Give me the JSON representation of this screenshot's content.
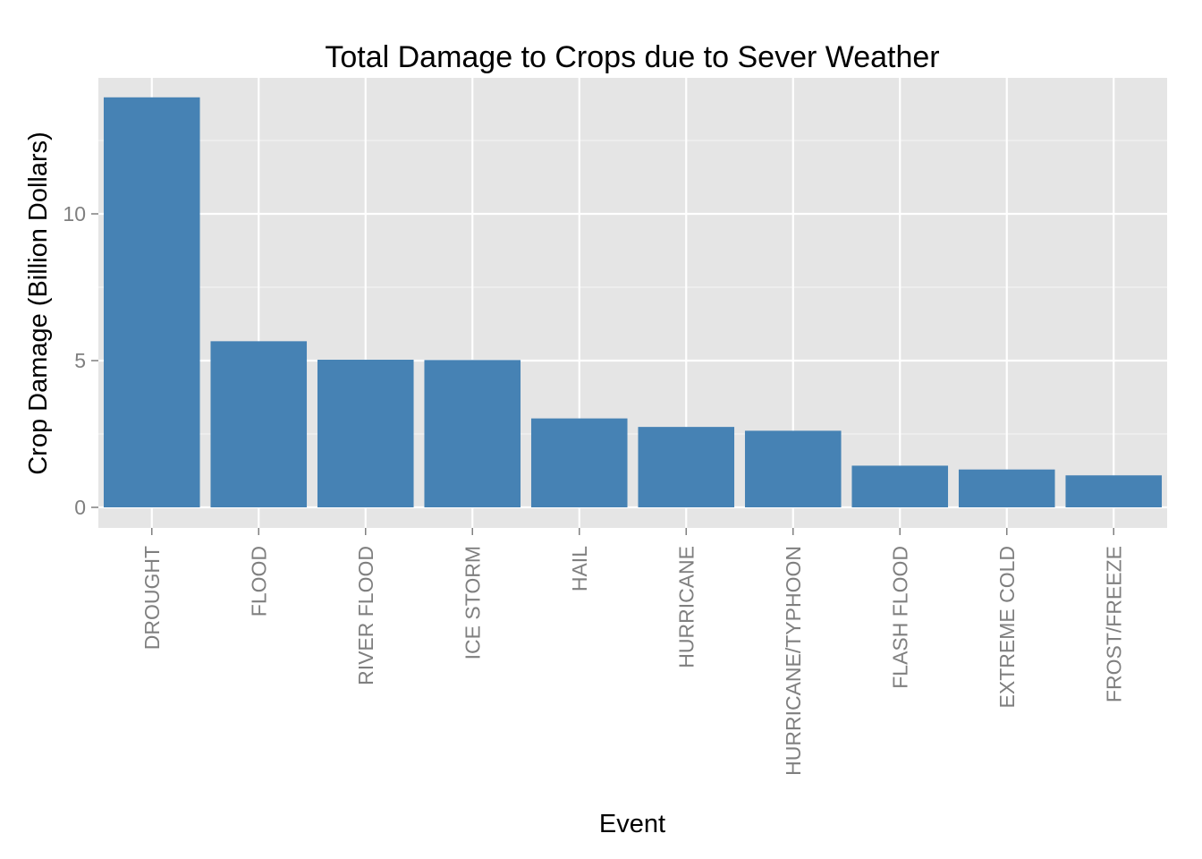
{
  "chart_data": {
    "type": "bar",
    "title": "Total Damage to Crops due to Sever Weather",
    "xlabel": "Event",
    "ylabel": "Crop Damage (Billion Dollars)",
    "categories": [
      "DROUGHT",
      "FLOOD",
      "RIVER FLOOD",
      "ICE STORM",
      "HAIL",
      "HURRICANE",
      "HURRICANE/TYPHOON",
      "FLASH FLOOD",
      "EXTREME COLD",
      "FROST/FREEZE"
    ],
    "values": [
      13.97,
      5.66,
      5.03,
      5.02,
      3.03,
      2.74,
      2.61,
      1.42,
      1.29,
      1.09
    ],
    "yticks": [
      0,
      5,
      10
    ],
    "ylim": [
      -0.7,
      14.7
    ],
    "grid": true,
    "colors": {
      "bar": "#4682b4",
      "panel": "#e5e5e5",
      "grid_major": "#ffffff",
      "grid_minor": "#f2f2f2"
    }
  }
}
